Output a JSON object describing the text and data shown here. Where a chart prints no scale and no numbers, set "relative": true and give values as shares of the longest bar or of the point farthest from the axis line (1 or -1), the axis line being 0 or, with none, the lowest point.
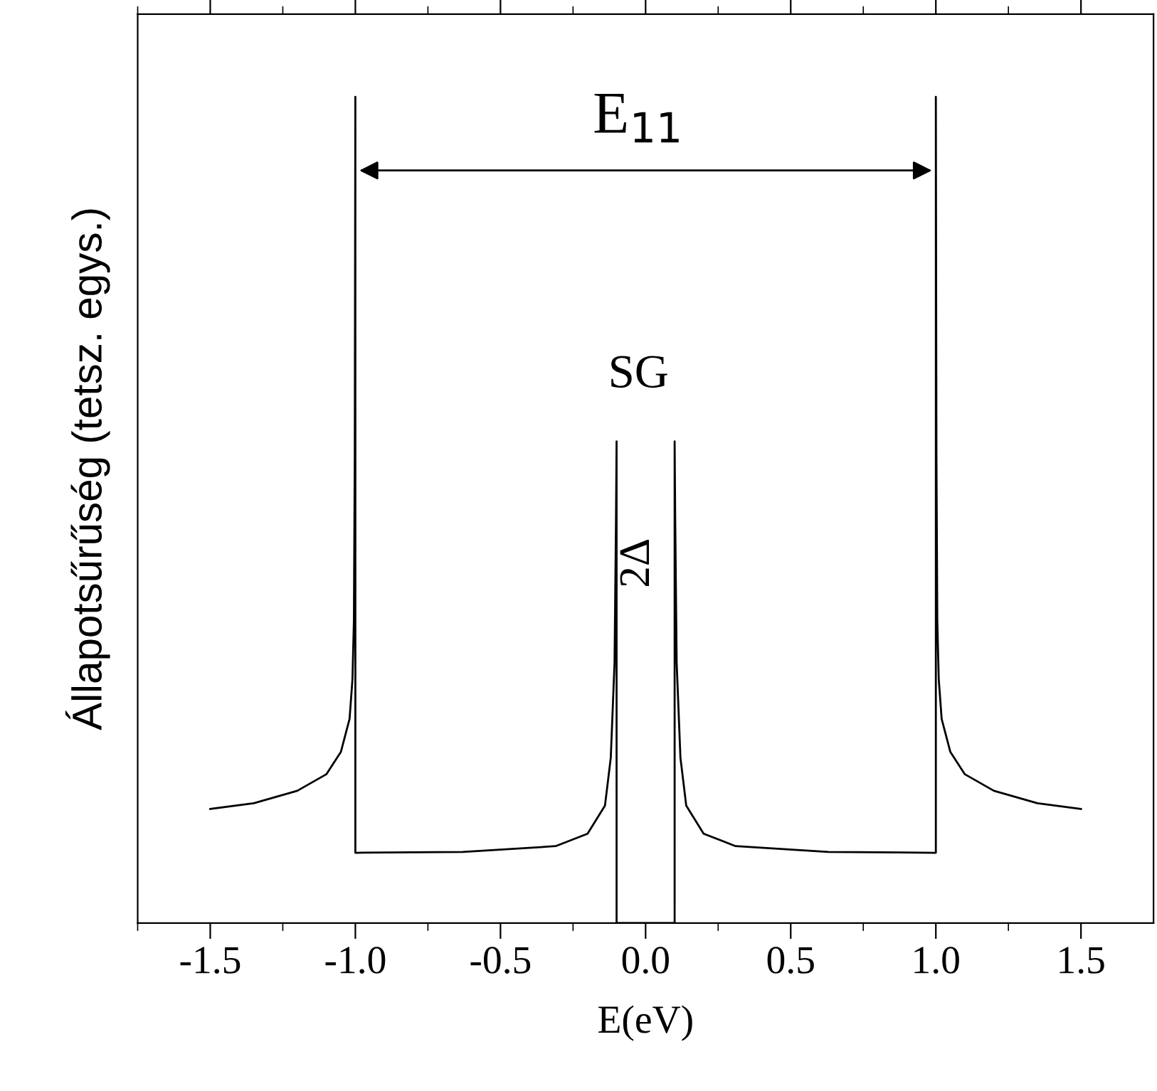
{
  "chart_data": {
    "type": "line",
    "relative": true,
    "xlabel": "E(eV)",
    "ylabel": "Állapotsűrűség (tetsz. egys.)",
    "xlim": [
      -1.75,
      1.75
    ],
    "xticks": [
      {
        "value": -1.75,
        "label": null
      },
      {
        "value": -1.5,
        "label": "-1.5"
      },
      {
        "value": -1.25,
        "label": null
      },
      {
        "value": -1.0,
        "label": "-1.0"
      },
      {
        "value": -0.75,
        "label": null
      },
      {
        "value": -0.5,
        "label": "-0.5"
      },
      {
        "value": -0.25,
        "label": null
      },
      {
        "value": 0.0,
        "label": "0.0"
      },
      {
        "value": 0.25,
        "label": null
      },
      {
        "value": 0.5,
        "label": "0.5"
      },
      {
        "value": 0.75,
        "label": null
      },
      {
        "value": 1.0,
        "label": "1.0"
      },
      {
        "value": 1.25,
        "label": null
      },
      {
        "value": 1.5,
        "label": "1.5"
      }
    ],
    "tick_labels": "x",
    "grid": false,
    "marker": "none",
    "line_style": "solid",
    "series": [
      {
        "color": "#000000",
        "x": [
          -1.5,
          -1.35,
          -1.2,
          -1.1,
          -1.05,
          -1.02,
          -1.01,
          -1.005,
          -1.002,
          -1.0,
          -1.0,
          -0.63,
          -0.31,
          -0.2,
          -0.14,
          -0.12,
          -0.107,
          -0.102,
          -0.1,
          -0.1,
          0.1,
          0.1,
          0.102,
          0.107,
          0.12,
          0.14,
          0.2,
          0.31,
          0.63,
          1.0,
          1.0,
          1.002,
          1.005,
          1.01,
          1.02,
          1.05,
          1.1,
          1.2,
          1.35,
          1.5
        ],
        "values": [
          0.138,
          0.145,
          0.16,
          0.18,
          0.207,
          0.247,
          0.295,
          0.366,
          0.565,
          1.0,
          0.085,
          0.086,
          0.093,
          0.108,
          0.142,
          0.2,
          0.315,
          0.488,
          0.583,
          0.0,
          0.0,
          0.583,
          0.488,
          0.315,
          0.2,
          0.142,
          0.108,
          0.093,
          0.086,
          0.085,
          1.0,
          0.565,
          0.366,
          0.295,
          0.247,
          0.207,
          0.18,
          0.16,
          0.145,
          0.138
        ]
      }
    ],
    "annotations": [
      "E$_{11}$",
      "SG",
      "2Δ"
    ]
  }
}
